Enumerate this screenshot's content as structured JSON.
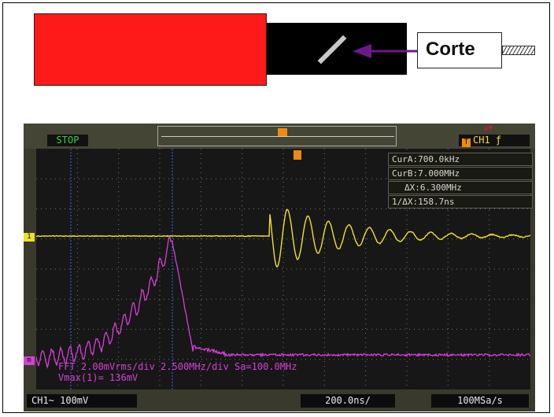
{
  "diagram": {
    "cut_label": "Corte"
  },
  "scope": {
    "run_state": "STOP",
    "channel_selector": "CH1",
    "trigger_marker": "T",
    "channel1_marker": "1",
    "math_marker": "m",
    "measurements": [
      "CurA:700.0kHz",
      "CurB:7.000MHz",
      "ΔX:6.300MHz",
      "1/ΔX:158.7ns"
    ],
    "fft_info": "FFT 2.00mVrms/div 2.500MHz/div Sa=100.0MHz",
    "vmax_readout": "Vmax(1)= 136mV",
    "channel_readout": "CH1~ 100mV",
    "timebase": "200.0ns/",
    "sample_rate": "100MSa/s",
    "colors": {
      "channel1": "#f0e02a",
      "math": "#d540d5",
      "cursor": "#4060ff"
    }
  }
}
